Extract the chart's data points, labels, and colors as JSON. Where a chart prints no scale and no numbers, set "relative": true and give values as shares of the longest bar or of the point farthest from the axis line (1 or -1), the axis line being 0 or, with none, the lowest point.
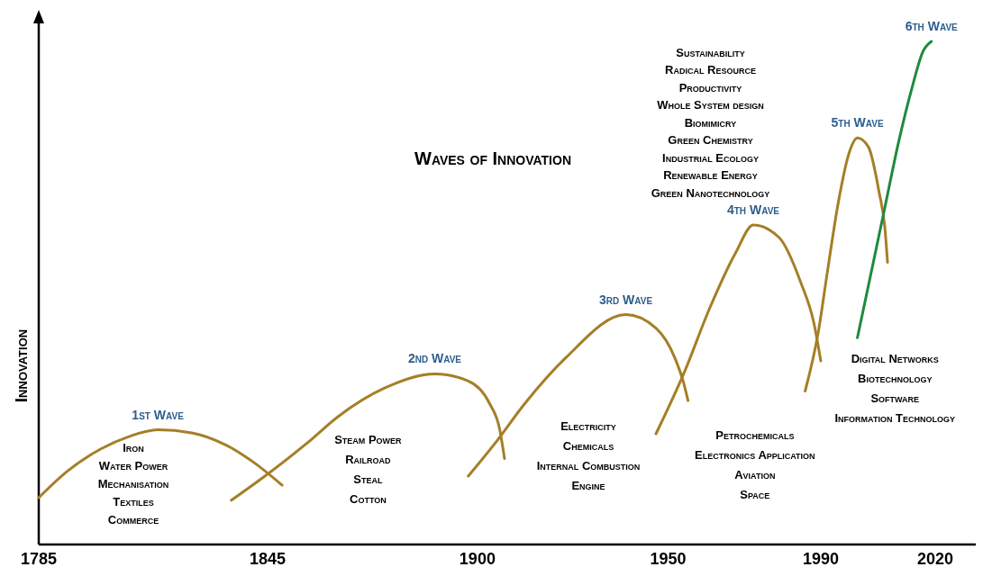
{
  "chart_data": {
    "type": "line",
    "title": "Waves of Innovation",
    "ylabel": "Innovation",
    "relative": true,
    "xlim": [
      1785,
      2033
    ],
    "xticks": [
      1785,
      1845,
      1900,
      1950,
      1990,
      2020
    ],
    "grid": false,
    "series": [
      {
        "name": "1st Wave",
        "color": "#a57f26",
        "x": [
          1785,
          1792.4,
          1801.3,
          1808.8,
          1816.2,
          1825.1,
          1834,
          1841.4,
          1848.8
        ],
        "values": [
          0.093,
          0.145,
          0.19,
          0.215,
          0.228,
          0.222,
          0.198,
          0.163,
          0.118
        ]
      },
      {
        "name": "2nd Wave",
        "color": "#a57f26",
        "x": [
          1835.5,
          1845,
          1855.1,
          1863.6,
          1875.4,
          1888.8,
          1897.6,
          1903.2,
          1905.8,
          1907.1
        ],
        "values": [
          0.088,
          0.14,
          0.2,
          0.255,
          0.31,
          0.339,
          0.325,
          0.28,
          0.23,
          0.171
        ]
      },
      {
        "name": "3rd Wave",
        "color": "#a57f26",
        "x": [
          1897.6,
          1904.5,
          1912.4,
          1923,
          1938.9,
          1946.8,
          1951.8,
          1954.1,
          1955.2
        ],
        "values": [
          0.136,
          0.2,
          0.28,
          0.37,
          0.457,
          0.43,
          0.37,
          0.32,
          0.286
        ]
      },
      {
        "name": "4th Wave",
        "color": "#a57f26",
        "x": [
          1946.8,
          1954.1,
          1960.9,
          1967.7,
          1972.3,
          1979.1,
          1984.8,
          1988.2,
          1990
        ],
        "values": [
          0.22,
          0.34,
          0.47,
          0.58,
          0.635,
          0.61,
          0.52,
          0.44,
          0.365
        ]
      },
      {
        "name": "5th Wave",
        "color": "#a57f26",
        "x": [
          1985.9,
          1989.3,
          1991.7,
          1994.6,
          1997.5,
          1999.6,
          2002.5,
          2005.3,
          2006.8,
          2007.5
        ],
        "values": [
          0.305,
          0.42,
          0.54,
          0.68,
          0.78,
          0.808,
          0.79,
          0.7,
          0.63,
          0.561
        ]
      },
      {
        "name": "6th Wave",
        "color": "#1f8a3e",
        "x": [
          1999.6,
          2003.2,
          2006.8,
          2010.4,
          2014,
          2016.8,
          2019
        ],
        "values": [
          0.411,
          0.54,
          0.67,
          0.8,
          0.91,
          0.98,
          1
        ]
      }
    ],
    "annotations": [
      "Iron\nWater Power\nMechanisation\nTextiles\nCommerce",
      "Steam Power\nRailroad\nSteal\nCotton",
      "Electricity\nChemicals\nInternal Combustion\nEngine",
      "Petrochemicals\nElectronics Application\nAviation\nSpace",
      "Digital Networks\nBiotechnology\nSoftware\nInformation Technology",
      "Sustainability\nRadical Resource\nProductivity\nWhole System design\nBiomimicry\nGreen Chemistry\nIndustrial Ecology\nRenewable Energy\nGreen Nanotechnology"
    ]
  }
}
